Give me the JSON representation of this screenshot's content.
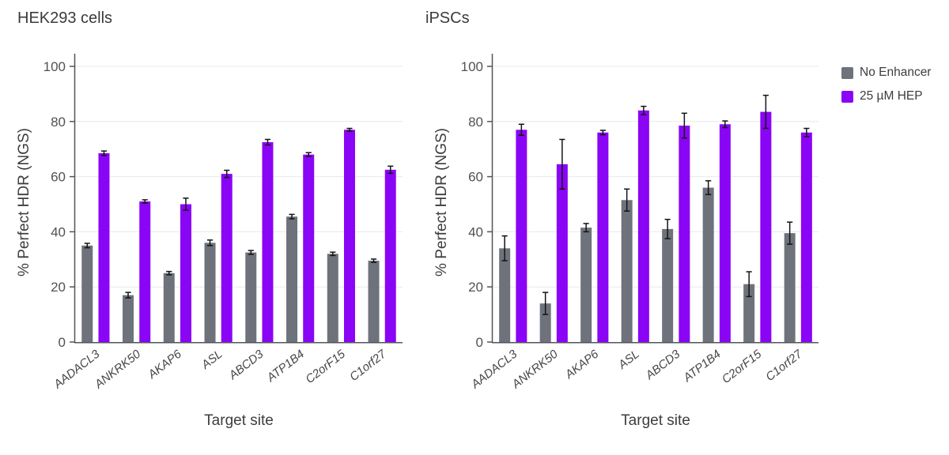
{
  "figure": {
    "background": "#ffffff",
    "legend": {
      "items": [
        {
          "label": "No Enhancer",
          "color": "#6E727B"
        },
        {
          "label": "25 µM HEP",
          "color": "#8A04F6"
        }
      ]
    }
  },
  "chart_data": [
    {
      "type": "bar",
      "title": "HEK293 cells",
      "xlabel": "Target site",
      "ylabel": "% Perfect HDR (NGS)",
      "ylim": [
        0,
        100
      ],
      "yticks": [
        0,
        20,
        40,
        60,
        80,
        100
      ],
      "grid": true,
      "legend_position": "outside-top-right",
      "categories": [
        "AADACL3",
        "ANKRK50",
        "AKAP6",
        "ASL",
        "ABCD3",
        "ATP1B4",
        "C2orF15",
        "C1orf27"
      ],
      "series": [
        {
          "name": "No Enhancer",
          "color": "#6E727B",
          "values": [
            35,
            17,
            25,
            36,
            32.5,
            45.5,
            32,
            29.5
          ],
          "errors": [
            0.8,
            1.0,
            0.6,
            1.0,
            0.7,
            0.8,
            0.6,
            0.6
          ]
        },
        {
          "name": "25 µM HEP",
          "color": "#8A04F6",
          "values": [
            68.5,
            51,
            50,
            61,
            72.5,
            68,
            77,
            62.5
          ],
          "errors": [
            0.8,
            0.6,
            2.2,
            1.3,
            1.0,
            0.7,
            0.5,
            1.3
          ]
        }
      ]
    },
    {
      "type": "bar",
      "title": "iPSCs",
      "xlabel": "Target site",
      "ylabel": "% Perfect HDR (NGS)",
      "ylim": [
        0,
        100
      ],
      "yticks": [
        0,
        20,
        40,
        60,
        80,
        100
      ],
      "grid": true,
      "legend_position": "outside-top-right",
      "categories": [
        "AADACL3",
        "ANKRK50",
        "AKAP6",
        "ASL",
        "ABCD3",
        "ATP1B4",
        "C2orF15",
        "C1orf27"
      ],
      "series": [
        {
          "name": "No Enhancer",
          "color": "#6E727B",
          "values": [
            34,
            14,
            41.5,
            51.5,
            41,
            56,
            21,
            39.5
          ],
          "errors": [
            4.5,
            4.0,
            1.5,
            4.0,
            3.5,
            2.5,
            4.5,
            4.0
          ]
        },
        {
          "name": "25 µM HEP",
          "color": "#8A04F6",
          "values": [
            77,
            64.5,
            76,
            84,
            78.5,
            79,
            83.5,
            76
          ],
          "errors": [
            2.0,
            9.0,
            0.8,
            1.5,
            4.5,
            1.2,
            6.0,
            1.5
          ]
        }
      ]
    }
  ]
}
